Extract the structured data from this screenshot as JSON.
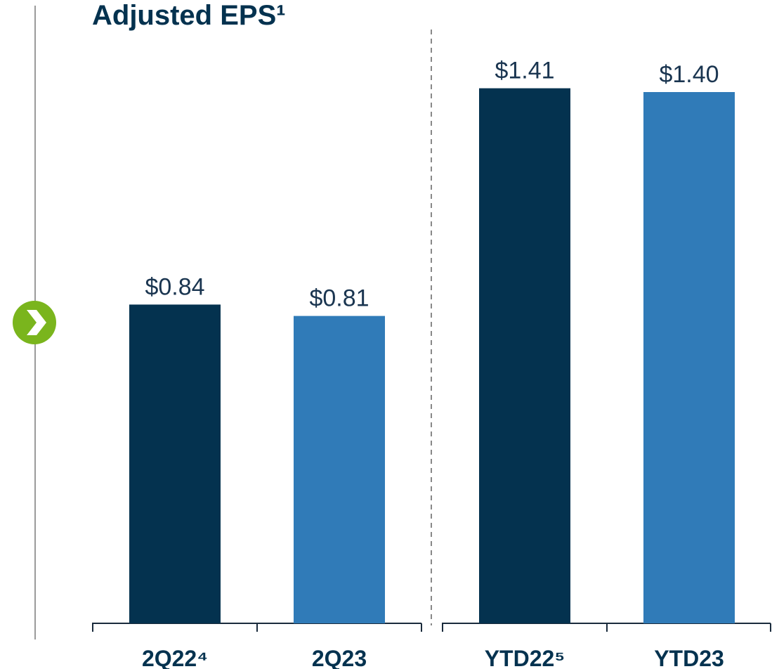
{
  "chart_data": {
    "type": "bar",
    "title": "Adjusted EPS¹",
    "categories": [
      "2Q22⁴",
      "2Q23",
      "YTD22⁵",
      "YTD23"
    ],
    "values": [
      0.84,
      0.81,
      1.41,
      1.4
    ],
    "value_labels": [
      "$0.84",
      "$0.81",
      "$1.41",
      "$1.40"
    ],
    "colors": [
      "#04324f",
      "#307bb8",
      "#04324f",
      "#307bb8"
    ]
  }
}
